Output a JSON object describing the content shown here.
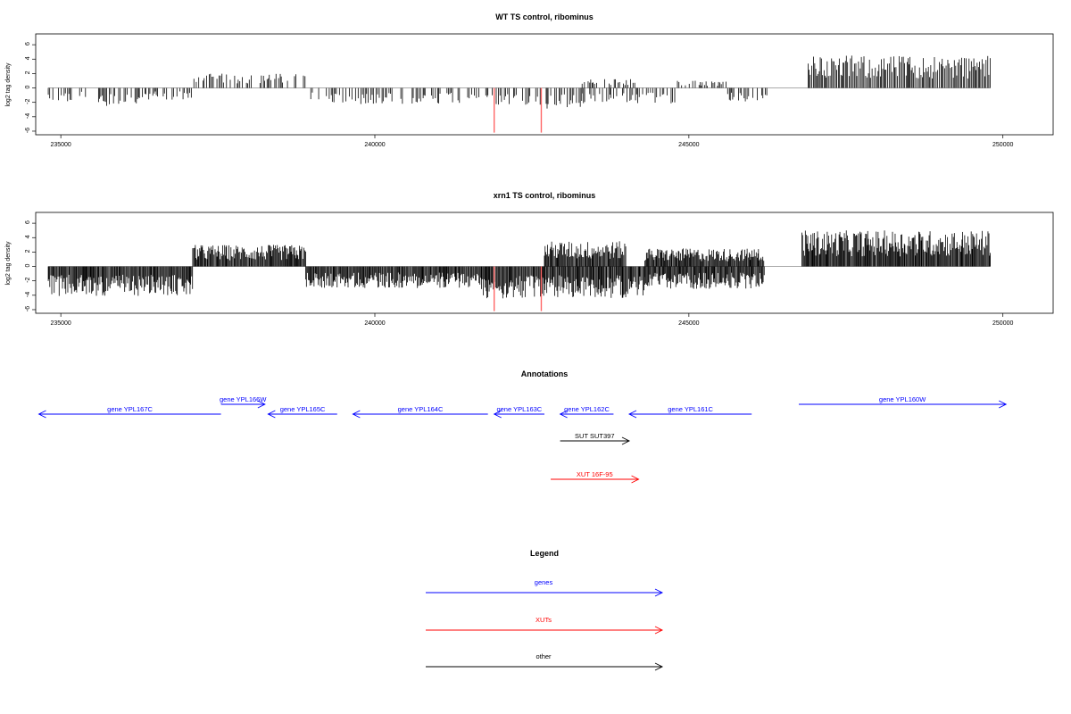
{
  "chart_data": [
    {
      "type": "bar",
      "title": "WT TS control, ribominus",
      "ylabel": "log2 tag density",
      "xlim": [
        234600,
        250800
      ],
      "ylim": [
        -6.5,
        7.5
      ],
      "xticks": [
        235000,
        240000,
        245000,
        250000
      ],
      "yticks": [
        -6,
        -4,
        -2,
        0,
        2,
        4,
        6
      ],
      "grid": false,
      "density_profile": [
        {
          "x": [
            234800,
            235400
          ],
          "y": -1.5
        },
        {
          "x": [
            235600,
            236300
          ],
          "y": -2.0
        },
        {
          "x": [
            236300,
            237100
          ],
          "y": -1.3
        },
        {
          "x": [
            237100,
            238900
          ],
          "y": 1.6
        },
        {
          "x": [
            238900,
            241800
          ],
          "y": -1.8
        },
        {
          "x": [
            241800,
            242700
          ],
          "y": -1.9
        },
        {
          "x": [
            242700,
            243300
          ],
          "y": -2.4
        },
        {
          "x": [
            243300,
            244200
          ],
          "y": 1.0
        },
        {
          "x": [
            243300,
            244800
          ],
          "y": -1.8
        },
        {
          "x": [
            244800,
            245600
          ],
          "y": 0.8
        },
        {
          "x": [
            245600,
            246300
          ],
          "y": -1.6
        },
        {
          "x": [
            246900,
            249800
          ],
          "y": 3.6
        }
      ],
      "highlight_bars": [
        {
          "x": 241900,
          "y": -6.2
        },
        {
          "x": 242650,
          "y": -6.2
        }
      ]
    },
    {
      "type": "bar",
      "title": "xrn1 TS control, ribominus",
      "ylabel": "log2 tag density",
      "xlim": [
        234600,
        250800
      ],
      "ylim": [
        -6.5,
        7.5
      ],
      "xticks": [
        235000,
        240000,
        245000,
        250000
      ],
      "yticks": [
        -6,
        -4,
        -2,
        0,
        2,
        4,
        6
      ],
      "grid": false,
      "density_profile": [
        {
          "x": [
            234800,
            237100
          ],
          "y": -3.3
        },
        {
          "x": [
            237100,
            238900
          ],
          "y": 2.4
        },
        {
          "x": [
            238900,
            241700
          ],
          "y": -2.4
        },
        {
          "x": [
            241700,
            242700
          ],
          "y": -3.6
        },
        {
          "x": [
            242700,
            244000
          ],
          "y": 2.8
        },
        {
          "x": [
            242700,
            244300
          ],
          "y": -3.5
        },
        {
          "x": [
            244300,
            246200
          ],
          "y": 2.0
        },
        {
          "x": [
            244300,
            246200
          ],
          "y": -2.5
        },
        {
          "x": [
            246800,
            249800
          ],
          "y": 4.0
        }
      ],
      "highlight_bars": [
        {
          "x": 241900,
          "y": -6.2
        },
        {
          "x": 242650,
          "y": -6.2
        }
      ]
    }
  ],
  "annotations": {
    "title": "Annotations",
    "features": [
      {
        "label": "gene YPL167C",
        "kind": "gene",
        "start": 234650,
        "end": 237550,
        "strand": "-",
        "row": 0
      },
      {
        "label": "gene YPL166W",
        "kind": "gene",
        "start": 237550,
        "end": 238250,
        "strand": "+",
        "row": -1
      },
      {
        "label": "gene YPL165C",
        "kind": "gene",
        "start": 238300,
        "end": 239400,
        "strand": "-",
        "row": 0
      },
      {
        "label": "gene YPL164C",
        "kind": "gene",
        "start": 239650,
        "end": 241800,
        "strand": "-",
        "row": 0
      },
      {
        "label": "gene YPL163C",
        "kind": "gene",
        "start": 241900,
        "end": 242700,
        "strand": "-",
        "row": 0
      },
      {
        "label": "gene YPL162C",
        "kind": "gene",
        "start": 242950,
        "end": 243800,
        "strand": "-",
        "row": 0
      },
      {
        "label": "gene YPL161C",
        "kind": "gene",
        "start": 244050,
        "end": 246000,
        "strand": "-",
        "row": 0
      },
      {
        "label": "gene YPL160W",
        "kind": "gene",
        "start": 246750,
        "end": 250050,
        "strand": "+",
        "row": -1
      },
      {
        "label": "SUT SUT397",
        "kind": "other",
        "start": 242950,
        "end": 244050,
        "strand": "+",
        "row": 1
      },
      {
        "label": "XUT 16F-95",
        "kind": "xut",
        "start": 242800,
        "end": 244200,
        "strand": "+",
        "row": 2
      }
    ]
  },
  "legend": {
    "title": "Legend",
    "items": [
      {
        "label": "genes",
        "kind": "gene"
      },
      {
        "label": "XUTs",
        "kind": "xut"
      },
      {
        "label": "other",
        "kind": "other"
      }
    ]
  },
  "colors": {
    "gene": "#0000ff",
    "xut": "#ff0000",
    "other": "#000000",
    "highlight": "#ff6666",
    "bars": "#000000"
  }
}
